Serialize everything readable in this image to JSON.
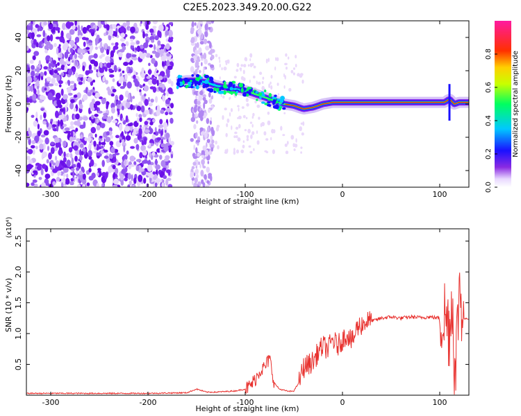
{
  "figure_title": "C2E5.2023.349.20.00.G22",
  "colors": {
    "snr_line": "#e8322f",
    "axis": "#000000"
  },
  "chart_data": [
    {
      "type": "heatmap",
      "xlabel": "Height of straight line (km)",
      "ylabel": "Frequency (Hz)",
      "xlim": [
        -325,
        130
      ],
      "ylim": [
        -50,
        50
      ],
      "xticks": [
        -300,
        -200,
        -100,
        0,
        100
      ],
      "yticks": [
        -40,
        -20,
        0,
        20,
        40
      ],
      "colorbar": {
        "label": "Normalized spectral amplitude",
        "range": [
          0,
          1
        ],
        "ticks": [
          "0.0",
          "0.2",
          "0.4",
          "0.6",
          "0.8"
        ],
        "colormap": "rainbow (purple-blue-cyan-green-yellow-red-magenta)"
      },
      "signal_track": {
        "x": [
          -170,
          -160,
          -150,
          -140,
          -130,
          -120,
          -110,
          -100,
          -90,
          -80,
          -70,
          -60,
          -50,
          -40,
          -30,
          -20,
          -10,
          0,
          20,
          40,
          60,
          80,
          100,
          105,
          110,
          115,
          120,
          130
        ],
        "y": [
          13,
          14,
          14,
          13,
          11,
          10,
          9,
          8,
          6,
          4,
          2,
          0,
          -1,
          -3,
          -2,
          0,
          1,
          1,
          1,
          1,
          1,
          1,
          1,
          1,
          3,
          0,
          1,
          1
        ]
      },
      "noise_region_x": [
        -325,
        -175
      ]
    },
    {
      "type": "line",
      "xlabel": "Height of straight line (km)",
      "ylabel": "SNR (10 * v/v)",
      "y_multiplier": "(x10⁴)",
      "xlim": [
        -325,
        130
      ],
      "ylim": [
        0,
        2.7
      ],
      "xticks": [
        -300,
        -200,
        -100,
        0,
        100
      ],
      "yticks": [
        0.5,
        1.0,
        1.5,
        2.0,
        2.5
      ],
      "series": [
        {
          "x": [
            -325,
            -200,
            -160,
            -150,
            -140,
            -130,
            -120,
            -110,
            -100,
            -95,
            -90,
            -85,
            -80,
            -75,
            -70,
            -65,
            -60,
            -55,
            -50,
            -45,
            -40,
            -35,
            -30,
            -25,
            -20,
            -15,
            -10,
            -5,
            0,
            5,
            10,
            15,
            20,
            25,
            30,
            40,
            50,
            60,
            70,
            80,
            90,
            100,
            105,
            110,
            113,
            116,
            120,
            125,
            130
          ],
          "y": [
            0.03,
            0.03,
            0.04,
            0.1,
            0.05,
            0.05,
            0.06,
            0.07,
            0.1,
            0.15,
            0.25,
            0.4,
            0.45,
            0.6,
            0.2,
            0.1,
            0.08,
            0.06,
            0.07,
            0.2,
            0.45,
            0.5,
            0.55,
            0.7,
            0.8,
            0.75,
            0.9,
            0.8,
            0.9,
            1.0,
            0.85,
            1.1,
            1.15,
            1.2,
            1.2,
            1.25,
            1.27,
            1.25,
            1.27,
            1.26,
            1.27,
            1.25,
            1.3,
            1.1,
            1.6,
            0.2,
            1.8,
            1.24,
            1.24
          ]
        }
      ]
    }
  ]
}
